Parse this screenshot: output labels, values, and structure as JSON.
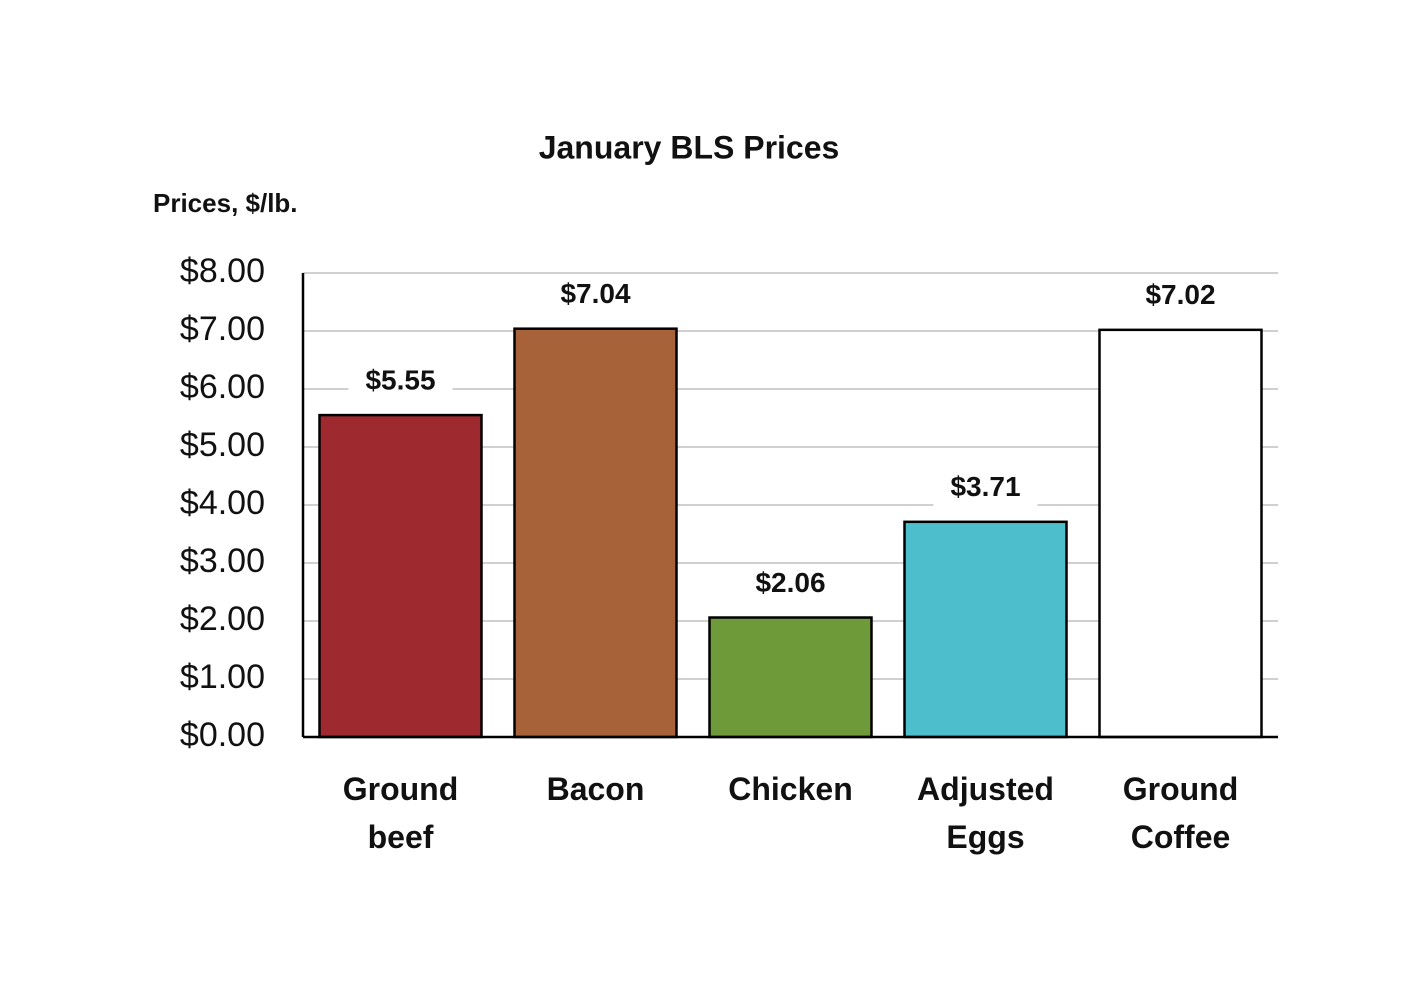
{
  "chart_data": {
    "type": "bar",
    "title": "January BLS Prices",
    "y_label": "Prices, $/lb.",
    "categories": [
      "Ground beef",
      "Bacon",
      "Chicken",
      "Adjusted Eggs",
      "Ground Coffee"
    ],
    "values": [
      5.55,
      7.04,
      2.06,
      3.71,
      7.02
    ],
    "value_labels": [
      "$5.55",
      "$7.04",
      "$2.06",
      "$3.71",
      "$7.02"
    ],
    "colors": [
      "#9e2a2f",
      "#a8623a",
      "#6f9a3a",
      "#4dbfcc",
      "#ffffff"
    ],
    "ylim": [
      0,
      8
    ],
    "yticks": [
      {
        "value": 0,
        "label": "$0.00"
      },
      {
        "value": 1,
        "label": "$1.00"
      },
      {
        "value": 2,
        "label": "$2.00"
      },
      {
        "value": 3,
        "label": "$3.00"
      },
      {
        "value": 4,
        "label": "$4.00"
      },
      {
        "value": 5,
        "label": "$5.00"
      },
      {
        "value": 6,
        "label": "$6.00"
      },
      {
        "value": 7,
        "label": "$7.00"
      },
      {
        "value": 8,
        "label": "$8.00"
      }
    ],
    "grid": true
  }
}
